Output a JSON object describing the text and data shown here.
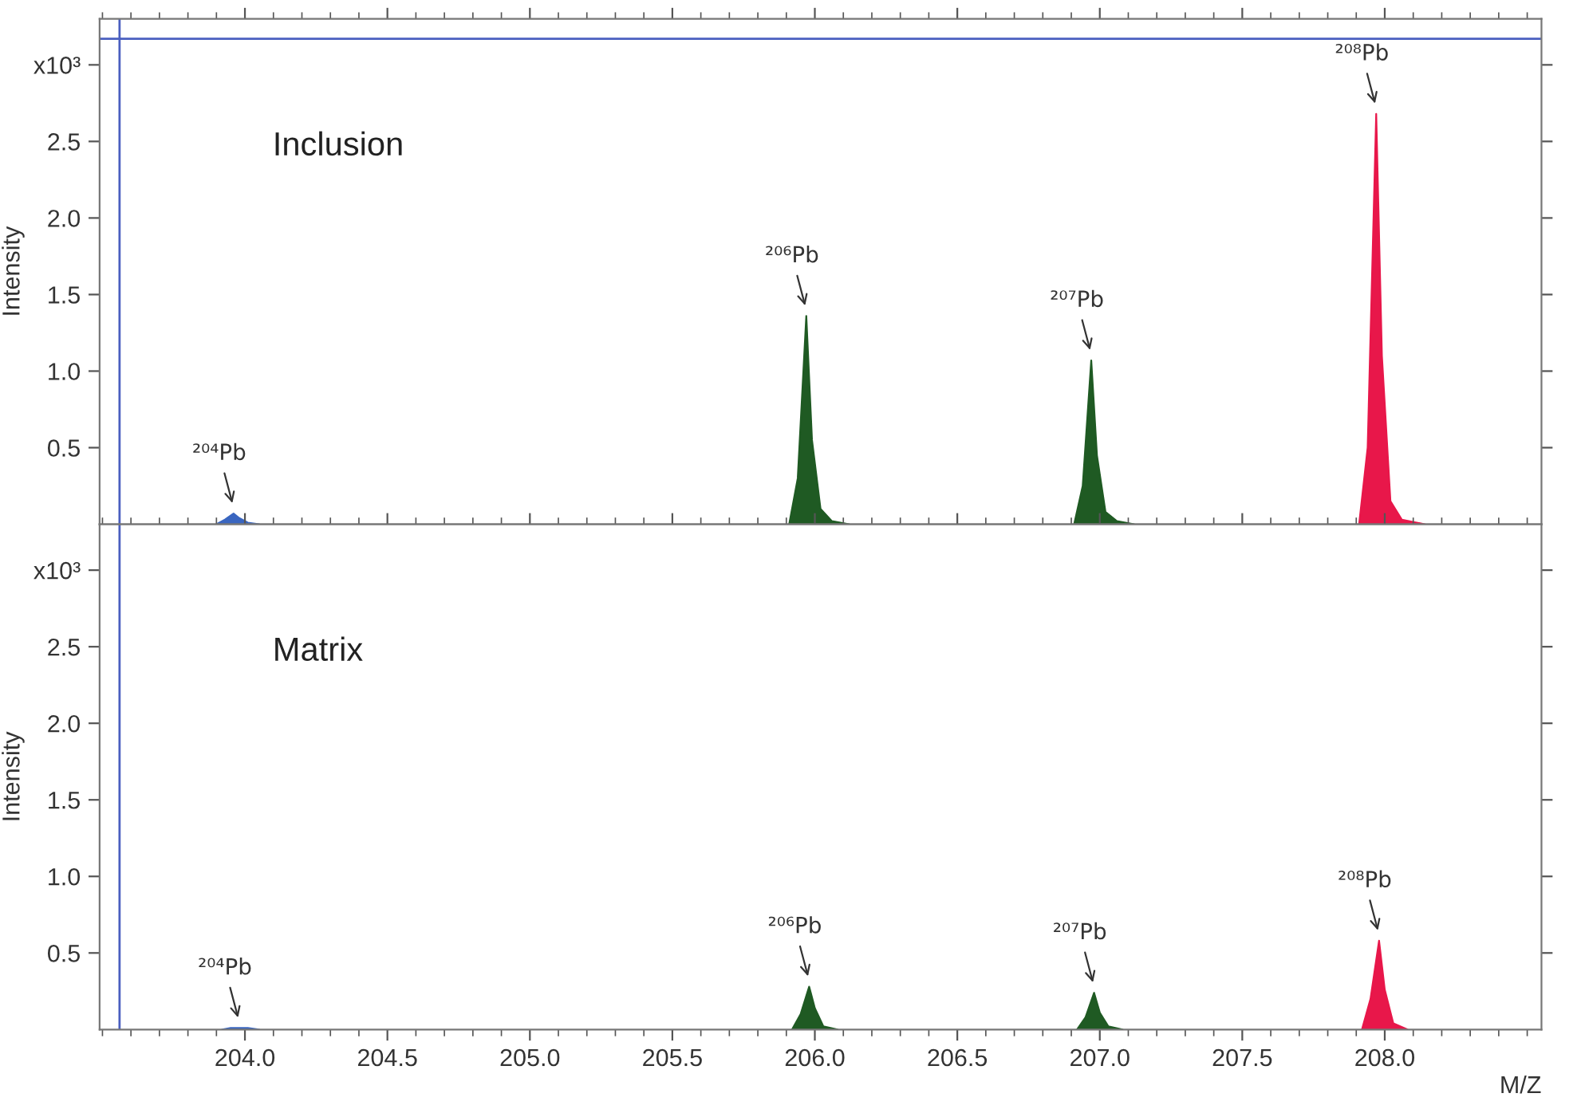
{
  "chart_data": [
    {
      "type": "area",
      "ylabel": "Intensity",
      "xlim": [
        203.49,
        208.55
      ],
      "ylim": [
        0,
        3.3
      ],
      "xticks": [
        {
          "value": 204,
          "label": null
        },
        {
          "value": 204.5,
          "label": null
        },
        {
          "value": 205,
          "label": null
        },
        {
          "value": 205.5,
          "label": null
        },
        {
          "value": 206,
          "label": null
        },
        {
          "value": 206.5,
          "label": null
        },
        {
          "value": 207,
          "label": null
        },
        {
          "value": 207.5,
          "label": null
        },
        {
          "value": 208,
          "label": null
        }
      ],
      "yticks": [
        0.5,
        {
          "value": 1,
          "label": "1.0"
        },
        1.5,
        {
          "value": 2,
          "label": "2.0"
        },
        2.5,
        {
          "value": 3,
          "label": "x10³"
        }
      ],
      "tick_labels": "y",
      "series": [
        {
          "color": "#3a66c0",
          "x": [
            203.9,
            203.93,
            203.96,
            203.98,
            204.01,
            204.05
          ],
          "values": [
            0,
            0.03,
            0.07,
            0.04,
            0.01,
            0
          ]
        },
        {
          "color": "#1f5a23",
          "x": [
            205.91,
            205.94,
            205.97,
            205.99,
            206.02,
            206.06,
            206.12
          ],
          "values": [
            0,
            0.3,
            1.36,
            0.55,
            0.1,
            0.02,
            0
          ]
        },
        {
          "color": "#1f5a23",
          "x": [
            206.91,
            206.94,
            206.97,
            206.99,
            207.02,
            207.06,
            207.12
          ],
          "values": [
            0,
            0.25,
            1.07,
            0.45,
            0.08,
            0.02,
            0
          ]
        },
        {
          "color": "#e8174a",
          "x": [
            207.91,
            207.94,
            207.97,
            207.99,
            208.02,
            208.06,
            208.14
          ],
          "values": [
            0,
            0.5,
            2.68,
            1.1,
            0.15,
            0.03,
            0
          ]
        }
      ],
      "ref_lines": [
        {
          "axis": "y",
          "value": 3.17,
          "color": "#4a5fc0"
        },
        {
          "axis": "x",
          "value": 203.56,
          "color": "#4a5fc0"
        }
      ],
      "annotations": [
        {
          "text": "Inclusion"
        },
        {
          "text": "²⁰⁴Pb",
          "x": 203.96,
          "y": 0.07
        },
        {
          "text": "²⁰⁶Pb",
          "x": 205.97,
          "y": 1.36
        },
        {
          "text": "²⁰⁷Pb",
          "x": 206.97,
          "y": 1.07
        },
        {
          "text": "²⁰⁸Pb",
          "x": 207.97,
          "y": 2.68
        }
      ]
    },
    {
      "type": "area",
      "ylabel": "Intensity",
      "xlabel": "M/Z",
      "xlim": [
        203.49,
        208.55
      ],
      "ylim": [
        0,
        3.3
      ],
      "xticks": [
        {
          "value": 204,
          "label": "204.0"
        },
        204.5,
        {
          "value": 205,
          "label": "205.0"
        },
        205.5,
        {
          "value": 206,
          "label": "206.0"
        },
        206.5,
        {
          "value": 207,
          "label": "207.0"
        },
        207.5,
        {
          "value": 208,
          "label": "208.0"
        }
      ],
      "yticks": [
        0.5,
        {
          "value": 1,
          "label": "1.0"
        },
        1.5,
        {
          "value": 2,
          "label": "2.0"
        },
        2.5,
        {
          "value": 3,
          "label": "x10³"
        }
      ],
      "series": [
        {
          "color": "#3a66c0",
          "x": [
            203.92,
            203.95,
            203.98,
            204.01,
            204.05
          ],
          "values": [
            0,
            0.01,
            0.01,
            0.01,
            0
          ]
        },
        {
          "color": "#1f5a23",
          "x": [
            205.92,
            205.95,
            205.98,
            206.0,
            206.03,
            206.08
          ],
          "values": [
            0,
            0.1,
            0.28,
            0.14,
            0.02,
            0
          ]
        },
        {
          "color": "#1f5a23",
          "x": [
            206.92,
            206.95,
            206.98,
            207.0,
            207.03,
            207.08
          ],
          "values": [
            0,
            0.08,
            0.24,
            0.11,
            0.02,
            0
          ]
        },
        {
          "color": "#e8174a",
          "x": [
            207.92,
            207.95,
            207.98,
            208.0,
            208.03,
            208.08
          ],
          "values": [
            0,
            0.2,
            0.58,
            0.26,
            0.04,
            0
          ]
        }
      ],
      "ref_lines": [
        {
          "axis": "x",
          "value": 203.56,
          "color": "#4a5fc0"
        }
      ],
      "annotations": [
        {
          "text": "Matrix"
        },
        {
          "text": "²⁰⁴Pb",
          "x": 203.98,
          "y": 0.01
        },
        {
          "text": "²⁰⁶Pb",
          "x": 205.98,
          "y": 0.28
        },
        {
          "text": "²⁰⁷Pb",
          "x": 206.98,
          "y": 0.24
        },
        {
          "text": "²⁰⁸Pb",
          "x": 207.98,
          "y": 0.58
        }
      ]
    }
  ]
}
